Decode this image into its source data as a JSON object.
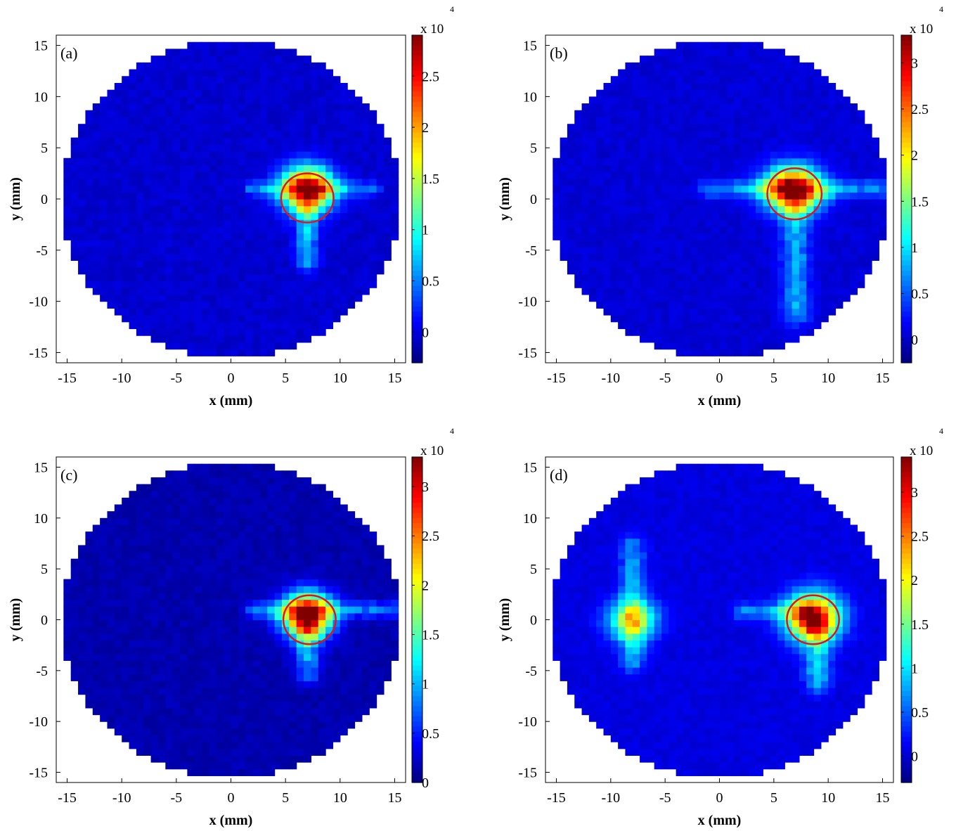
{
  "chart_data": [
    {
      "type": "heatmap",
      "panel_label": "(a)",
      "xlabel": "x (mm)",
      "ylabel": "y (mm)",
      "xlim": [
        -16,
        16
      ],
      "ylim": [
        -16,
        16
      ],
      "xticks": [
        "-15",
        "-10",
        "-5",
        "0",
        "5",
        "10",
        "15"
      ],
      "yticks": [
        "15",
        "10",
        "5",
        "0",
        "-5",
        "-10",
        "-15"
      ],
      "colorbar": {
        "multiplier": "x 10",
        "exponent": "4",
        "range": [
          -0.3,
          2.9
        ],
        "ticks": [
          "2.5",
          "2",
          "1.5",
          "1",
          "0.5",
          "0"
        ],
        "tick_values": [
          2.5,
          2.0,
          1.5,
          1.0,
          0.5,
          0.0
        ]
      },
      "aperture_radius_mm": 15.5,
      "background_value": -0.05,
      "hotspots": [
        {
          "x": 7,
          "y": 1,
          "sx": 1.6,
          "sy": 1.5,
          "peak": 2.9
        }
      ],
      "streaks": [
        {
          "x0": 7,
          "y0": -6,
          "x1": 7,
          "y1": -1,
          "width": 0.7,
          "value": 0.7
        },
        {
          "x0": 2,
          "y0": 1,
          "x1": 13,
          "y1": 1,
          "width": 0.5,
          "value": 0.55
        }
      ],
      "circle": {
        "cx": 7,
        "cy": 0.1,
        "r": 2.4
      }
    },
    {
      "type": "heatmap",
      "panel_label": "(b)",
      "xlabel": "x (mm)",
      "ylabel": "y (mm)",
      "xlim": [
        -16,
        16
      ],
      "ylim": [
        -16,
        16
      ],
      "xticks": [
        "-15",
        "-10",
        "-5",
        "0",
        "5",
        "10",
        "15"
      ],
      "yticks": [
        "15",
        "10",
        "5",
        "0",
        "-5",
        "-10",
        "-15"
      ],
      "colorbar": {
        "multiplier": "x 10",
        "exponent": "4",
        "range": [
          -0.25,
          3.3
        ],
        "ticks": [
          "3",
          "2.5",
          "2",
          "1.5",
          "1",
          "0.5",
          "0"
        ],
        "tick_values": [
          3.0,
          2.5,
          2.0,
          1.5,
          1.0,
          0.5,
          0.0
        ]
      },
      "aperture_radius_mm": 15.5,
      "background_value": 0.05,
      "hotspots": [
        {
          "x": 6.8,
          "y": 1,
          "sx": 1.8,
          "sy": 1.5,
          "peak": 3.2
        }
      ],
      "streaks": [
        {
          "x0": 7,
          "y0": -11,
          "x1": 7,
          "y1": -1,
          "width": 0.9,
          "value": 0.7
        },
        {
          "x0": -1,
          "y0": 1,
          "x1": 15,
          "y1": 1,
          "width": 0.6,
          "value": 0.6
        }
      ],
      "circle": {
        "cx": 6.9,
        "cy": 0.5,
        "r": 2.5
      }
    },
    {
      "type": "heatmap",
      "panel_label": "(c)",
      "xlabel": "x (mm)",
      "ylabel": "y (mm)",
      "xlim": [
        -16,
        16
      ],
      "ylim": [
        -16,
        16
      ],
      "xticks": [
        "-15",
        "-10",
        "-5",
        "0",
        "5",
        "10",
        "15"
      ],
      "yticks": [
        "15",
        "10",
        "5",
        "0",
        "-5",
        "-10",
        "-15"
      ],
      "colorbar": {
        "multiplier": "x 10",
        "exponent": "4",
        "range": [
          0.0,
          3.3
        ],
        "ticks": [
          "3",
          "2.5",
          "2",
          "1.5",
          "1",
          "0.5",
          "0"
        ],
        "tick_values": [
          3.0,
          2.5,
          2.0,
          1.5,
          1.0,
          0.5,
          0.0
        ]
      },
      "aperture_radius_mm": 15.5,
      "background_value": 0.15,
      "hotspots": [
        {
          "x": 7,
          "y": 0.5,
          "sx": 1.6,
          "sy": 1.5,
          "peak": 3.1
        }
      ],
      "streaks": [
        {
          "x0": 7,
          "y0": -5,
          "x1": 7,
          "y1": -1,
          "width": 0.8,
          "value": 0.75
        },
        {
          "x0": 2,
          "y0": 1,
          "x1": 15,
          "y1": 1,
          "width": 0.55,
          "value": 0.6
        }
      ],
      "circle": {
        "cx": 7.2,
        "cy": 0,
        "r": 2.4
      }
    },
    {
      "type": "heatmap",
      "panel_label": "(d)",
      "xlabel": "x (mm)",
      "ylabel": "y (mm)",
      "xlim": [
        -16,
        16
      ],
      "ylim": [
        -16,
        16
      ],
      "xticks": [
        "-15",
        "-10",
        "-5",
        "0",
        "5",
        "10",
        "15"
      ],
      "yticks": [
        "15",
        "10",
        "5",
        "0",
        "-5",
        "-10",
        "-15"
      ],
      "colorbar": {
        "multiplier": "x 10",
        "exponent": "4",
        "range": [
          -0.3,
          3.4
        ],
        "ticks": [
          "3",
          "2.5",
          "2",
          "1.5",
          "1",
          "0.5",
          "0"
        ],
        "tick_values": [
          3.0,
          2.5,
          2.0,
          1.5,
          1.0,
          0.5,
          0.0
        ]
      },
      "aperture_radius_mm": 15.5,
      "background_value": 0.05,
      "hotspots": [
        {
          "x": 8.6,
          "y": 0.3,
          "sx": 1.7,
          "sy": 1.6,
          "peak": 3.2
        },
        {
          "x": -8,
          "y": 0,
          "sx": 1.6,
          "sy": 1.4,
          "peak": 1.7
        }
      ],
      "streaks": [
        {
          "x0": 9,
          "y0": -6,
          "x1": 9,
          "y1": -1,
          "width": 0.8,
          "value": 0.8
        },
        {
          "x0": 2,
          "y0": 0.8,
          "x1": 8,
          "y1": 0.8,
          "width": 0.55,
          "value": 0.6
        },
        {
          "x0": -8,
          "y0": -4,
          "x1": -8,
          "y1": 7,
          "width": 0.8,
          "value": 0.65
        }
      ],
      "circle": {
        "cx": 8.6,
        "cy": 0,
        "r": 2.4
      }
    }
  ]
}
